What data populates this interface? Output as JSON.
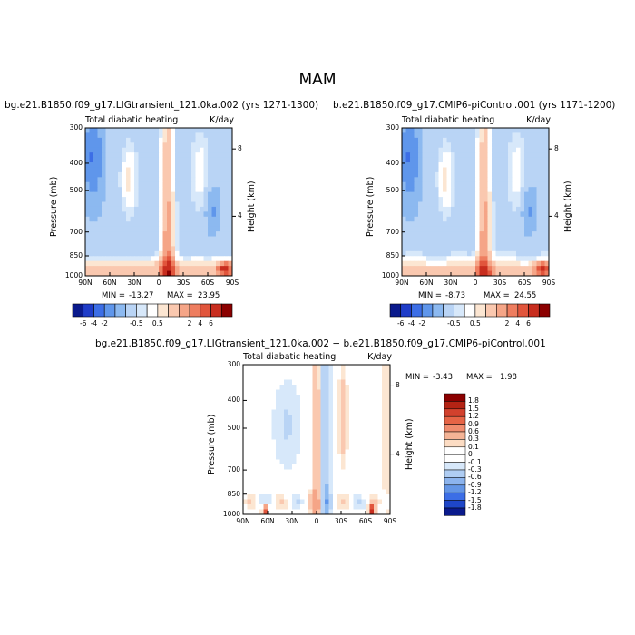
{
  "figure": {
    "title": "MAM",
    "colors": {
      "blue_dark": "#0a1a8c",
      "red_dark": "#8b0000",
      "neutral": "#ffffff"
    }
  },
  "chart_data": [
    {
      "type": "heatmap",
      "title": "bg.e21.B1850.f09_g17.LIGtransient_121.0ka.002 (yrs 1271-1300)",
      "left_string": "Total diabatic heating",
      "right_string": "K/day",
      "xlabel": "",
      "ylabel": "Pressure (mb)",
      "ylabel_right": "Height (km)",
      "x_ticks": [
        "90N",
        "60N",
        "30N",
        "0",
        "30S",
        "60S",
        "90S"
      ],
      "y_ticks": [
        "300",
        "400",
        "500",
        "700",
        "850",
        "1000"
      ],
      "y_ticks_right": [
        "8",
        "4"
      ],
      "ylim": [
        1000,
        300
      ],
      "stats": {
        "min_label": "MIN =",
        "min": "-13.27",
        "max_label": "MAX =",
        "max": "23.95"
      },
      "colorbar": {
        "levels": [
          "-6",
          "-4",
          "-2",
          "-0.5",
          "0.5",
          "2",
          "4",
          "6"
        ],
        "orientation": "horizontal"
      }
    },
    {
      "type": "heatmap",
      "title": "b.e21.B1850.f09_g17.CMIP6-piControl.001 (yrs 1171-1200)",
      "left_string": "Total diabatic heating",
      "right_string": "K/day",
      "xlabel": "",
      "ylabel": "Pressure (mb)",
      "ylabel_right": "Height (km)",
      "x_ticks": [
        "90N",
        "60N",
        "30N",
        "0",
        "30S",
        "60S",
        "90S"
      ],
      "y_ticks": [
        "300",
        "400",
        "500",
        "700",
        "850",
        "1000"
      ],
      "y_ticks_right": [
        "8",
        "4"
      ],
      "ylim": [
        1000,
        300
      ],
      "stats": {
        "min_label": "MIN =",
        "min": "-8.73",
        "max_label": "MAX =",
        "max": "24.55"
      },
      "colorbar": {
        "levels": [
          "-6",
          "-4",
          "-2",
          "-0.5",
          "0.5",
          "2",
          "4",
          "6"
        ],
        "orientation": "horizontal"
      }
    },
    {
      "type": "heatmap",
      "title": "bg.e21.B1850.f09_g17.LIGtransient_121.0ka.002 − b.e21.B1850.f09_g17.CMIP6-piControl.001",
      "left_string": "Total diabatic heating",
      "right_string": "K/day",
      "xlabel": "",
      "ylabel": "Pressure (mb)",
      "ylabel_right": "Height (km)",
      "x_ticks": [
        "90N",
        "60N",
        "30N",
        "0",
        "30S",
        "60S",
        "90S"
      ],
      "y_ticks": [
        "300",
        "400",
        "500",
        "700",
        "850",
        "1000"
      ],
      "y_ticks_right": [
        "8",
        "4"
      ],
      "ylim": [
        1000,
        300
      ],
      "stats": {
        "min_label": "MIN =",
        "min": "-3.43",
        "max_label": "MAX =",
        "max": "1.98"
      },
      "colorbar": {
        "levels": [
          "1.8",
          "1.5",
          "1.2",
          "0.9",
          "0.6",
          "0.3",
          "0.1",
          "0",
          "-0.1",
          "-0.3",
          "-0.6",
          "-0.9",
          "-1.2",
          "-1.5",
          "-1.8"
        ],
        "orientation": "vertical"
      }
    }
  ]
}
